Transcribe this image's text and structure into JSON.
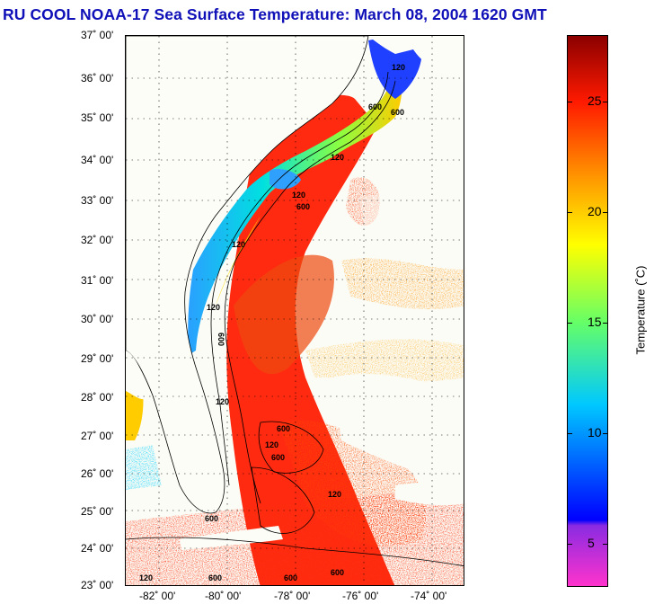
{
  "title": "RU COOL  NOAA-17  Sea Surface Temperature:  March 08, 2004 1620 GMT",
  "map": {
    "lat_labels": [
      "37˚ 00'",
      "36˚ 00'",
      "35˚ 00'",
      "34˚ 00'",
      "33˚ 00'",
      "32˚ 00'",
      "31˚ 00'",
      "30˚ 00'",
      "29˚ 00'",
      "28˚ 00'",
      "27˚ 00'",
      "26˚ 00'",
      "25˚ 00'",
      "24˚ 00'",
      "23˚ 00'"
    ],
    "lon_labels": [
      "-82˚ 00'",
      "-80˚ 00'",
      "-78˚ 00'",
      "-76˚ 00'",
      "-74˚ 00'"
    ],
    "contour_labels": [
      "120",
      "120",
      "120",
      "600",
      "600",
      "120",
      "120",
      "600",
      "120",
      "120",
      "600",
      "600",
      "120",
      "600",
      "600",
      "600",
      "600",
      "120",
      "600"
    ]
  },
  "colorbar": {
    "ticks": [
      "5",
      "10",
      "15",
      "20",
      "25"
    ],
    "label": "Temperature (˚C)",
    "colors": {
      "low": "#ff33cc",
      "purple": "#8a2be2",
      "blue": "#0000ff",
      "cyan": "#00c8ff",
      "green": "#66ff66",
      "yellow": "#ffff00",
      "orange": "#ff9900",
      "red": "#ff1a00",
      "dark_red": "#8b0000"
    }
  }
}
